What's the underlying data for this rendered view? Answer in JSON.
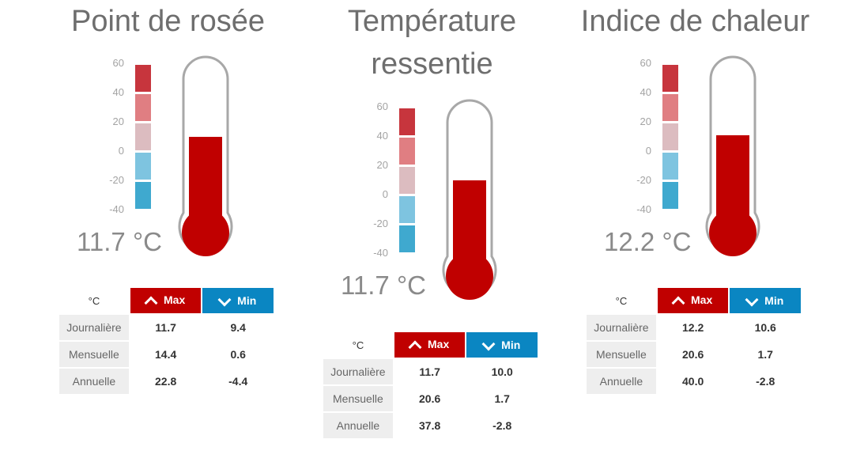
{
  "panels": [
    {
      "title": "Point de rosée",
      "reading": "11.7 °C",
      "fill_level": 0.62,
      "stats": {
        "unit": "°C",
        "max_label": "Max",
        "min_label": "Min",
        "rows": [
          {
            "label": "Journalière",
            "max": "11.7",
            "min": "9.4"
          },
          {
            "label": "Mensuelle",
            "max": "14.4",
            "min": "0.6"
          },
          {
            "label": "Annuelle",
            "max": "22.8",
            "min": "-4.4"
          }
        ]
      }
    },
    {
      "title": "Température ressentie",
      "reading": "11.7 °C",
      "fill_level": 0.62,
      "stats": {
        "unit": "°C",
        "max_label": "Max",
        "min_label": "Min",
        "rows": [
          {
            "label": "Journalière",
            "max": "11.7",
            "min": "10.0"
          },
          {
            "label": "Mensuelle",
            "max": "20.6",
            "min": "1.7"
          },
          {
            "label": "Annuelle",
            "max": "37.8",
            "min": "-2.8"
          }
        ]
      }
    },
    {
      "title": "Indice de chaleur",
      "reading": "12.2 °C",
      "fill_level": 0.63,
      "stats": {
        "unit": "°C",
        "max_label": "Max",
        "min_label": "Min",
        "rows": [
          {
            "label": "Journalière",
            "max": "12.2",
            "min": "10.6"
          },
          {
            "label": "Mensuelle",
            "max": "20.6",
            "min": "1.7"
          },
          {
            "label": "Annuelle",
            "max": "40.0",
            "min": "-2.8"
          }
        ]
      }
    }
  ],
  "scale_ticks": [
    "60",
    "40",
    "20",
    "0",
    "-20",
    "-40"
  ],
  "scale_colors": [
    "#c7353d",
    "#e07e82",
    "#dcbcc0",
    "#7ec4e0",
    "#3fa9cf"
  ],
  "colors": {
    "fill": "#c00000",
    "tube_outline": "#a8a8a8",
    "max_header": "#c00000",
    "min_header": "#0a86c2"
  }
}
